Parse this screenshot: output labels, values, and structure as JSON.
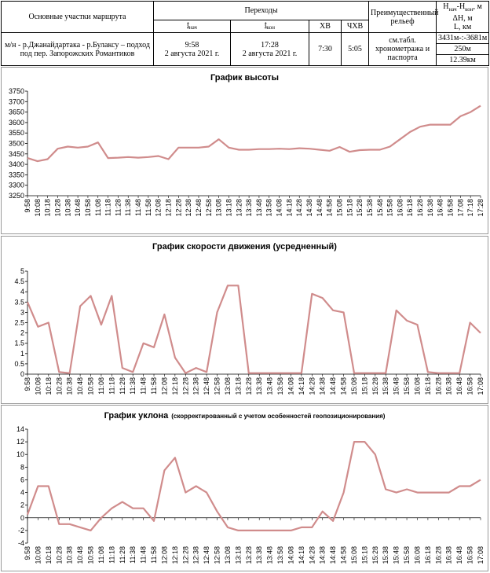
{
  "header": {
    "col1_title": "Основные участки маршрута",
    "transitions_title": "Переходы",
    "t_start_label": "t",
    "t_start_sub": "нач",
    "t_end_label": "t",
    "t_end_sub": "кон",
    "hv_label": "ХВ",
    "chv_label": "ЧХВ",
    "relief_title": "Преимущественный рельеф",
    "h_label": "H",
    "h_sub1": "нач",
    "h_dash": "-H",
    "h_sub2": "кон",
    "h_unit": ", м",
    "dh_label": "ΔH, м",
    "l_label": "L, км"
  },
  "row": {
    "section": "м/н - р.Джанайдартака - р.Булаксу – подход под пер. Запорожских Романтиков",
    "t_start_time": "9:58",
    "t_start_date": "2 августа 2021 г.",
    "t_end_time": "17:28",
    "t_end_date": "2 августа 2021 г.",
    "hv": "7:30",
    "chv": "5:05",
    "relief": "см.табл. хронометража и паспорта",
    "heights": "3431м-:-3681м",
    "dh": "250м",
    "length": "12.39км"
  },
  "chart_data": [
    {
      "type": "line",
      "title": "График высоты",
      "x": [
        "9:58",
        "10:08",
        "10:18",
        "10:28",
        "10:38",
        "10:48",
        "10:58",
        "11:08",
        "11:18",
        "11:28",
        "11:38",
        "11:48",
        "11:58",
        "12:08",
        "12:18",
        "12:28",
        "12:38",
        "12:48",
        "12:58",
        "13:08",
        "13:18",
        "13:28",
        "13:38",
        "13:48",
        "13:58",
        "14:08",
        "14:18",
        "14:28",
        "14:38",
        "14:48",
        "14:58",
        "15:08",
        "15:18",
        "15:28",
        "15:38",
        "15:48",
        "15:58",
        "16:08",
        "16:18",
        "16:28",
        "16:38",
        "16:48",
        "16:58",
        "17:08",
        "17:18",
        "17:28"
      ],
      "values": [
        3430,
        3415,
        3425,
        3475,
        3485,
        3480,
        3485,
        3505,
        3430,
        3432,
        3435,
        3432,
        3435,
        3440,
        3425,
        3480,
        3480,
        3480,
        3485,
        3520,
        3480,
        3470,
        3470,
        3473,
        3473,
        3475,
        3473,
        3477,
        3475,
        3470,
        3465,
        3483,
        3460,
        3468,
        3470,
        3470,
        3485,
        3520,
        3555,
        3580,
        3590,
        3590,
        3590,
        3630,
        3650,
        3680
      ],
      "ylim": [
        3250,
        3750
      ],
      "yticks": [
        3250,
        3300,
        3350,
        3400,
        3450,
        3500,
        3550,
        3600,
        3650,
        3700,
        3750
      ],
      "color": "#d08c8c"
    },
    {
      "type": "line",
      "title": "График скорости движения (усредненный)",
      "x": [
        "9:58",
        "10:08",
        "10:18",
        "10:28",
        "10:38",
        "10:48",
        "10:58",
        "11:08",
        "11:18",
        "11:28",
        "11:38",
        "11:48",
        "11:58",
        "12:08",
        "12:18",
        "12:28",
        "12:38",
        "12:48",
        "12:58",
        "13:08",
        "13:18",
        "13:28",
        "13:38",
        "13:48",
        "13:58",
        "14:08",
        "14:18",
        "14:28",
        "14:38",
        "14:48",
        "14:58",
        "15:08",
        "15:18",
        "15:28",
        "15:38",
        "15:48",
        "15:58",
        "16:08",
        "16:18",
        "16:28",
        "16:38",
        "16:48",
        "16:58",
        "17:08"
      ],
      "values": [
        3.5,
        2.3,
        2.5,
        0.1,
        0.05,
        3.3,
        3.8,
        2.4,
        3.8,
        0.3,
        0.1,
        1.5,
        1.3,
        2.9,
        0.8,
        0.05,
        0.3,
        0.1,
        3.0,
        4.3,
        4.3,
        0.05,
        0.05,
        0.05,
        0.05,
        0.05,
        0.05,
        3.9,
        3.7,
        3.1,
        3.0,
        0.05,
        0.05,
        0.05,
        0.05,
        3.1,
        2.6,
        2.4,
        0.1,
        0.05,
        0.05,
        0.05,
        2.5,
        2.0
      ],
      "ylim": [
        0,
        5
      ],
      "yticks": [
        0,
        0.5,
        1,
        1.5,
        2,
        2.5,
        3,
        3.5,
        4,
        4.5,
        5
      ],
      "color": "#d08c8c"
    },
    {
      "type": "line",
      "title": "График уклона",
      "subtitle": "(скорректированный  с учетом  особенностей  геопозиционирования)",
      "x": [
        "9:58",
        "10:08",
        "10:18",
        "10:28",
        "10:38",
        "10:48",
        "10:58",
        "11:08",
        "11:18",
        "11:28",
        "11:38",
        "11:48",
        "11:58",
        "12:08",
        "12:18",
        "12:28",
        "12:38",
        "12:48",
        "12:58",
        "13:08",
        "13:18",
        "13:28",
        "13:38",
        "13:48",
        "13:58",
        "14:08",
        "14:18",
        "14:28",
        "14:38",
        "14:48",
        "14:58",
        "15:08",
        "15:18",
        "15:28",
        "15:38",
        "15:48",
        "15:58",
        "16:08",
        "16:18",
        "16:28",
        "16:38",
        "16:48",
        "16:58",
        "17:08"
      ],
      "values": [
        0.5,
        5,
        5,
        -1,
        -1,
        -1.5,
        -2,
        0,
        1.5,
        2.5,
        1.5,
        1.5,
        -0.5,
        7.5,
        9.5,
        4,
        5,
        4,
        1,
        -1.5,
        -2,
        -2,
        -2,
        -2,
        -2,
        -2,
        -1.5,
        -1.5,
        1,
        -0.5,
        4,
        12,
        12,
        10,
        4.5,
        4,
        4.5,
        4,
        4,
        4,
        4,
        5,
        5,
        6
      ],
      "ylim": [
        -4,
        14
      ],
      "yticks": [
        -4,
        -2,
        0,
        2,
        4,
        6,
        8,
        10,
        12,
        14
      ],
      "color": "#d08c8c"
    }
  ]
}
